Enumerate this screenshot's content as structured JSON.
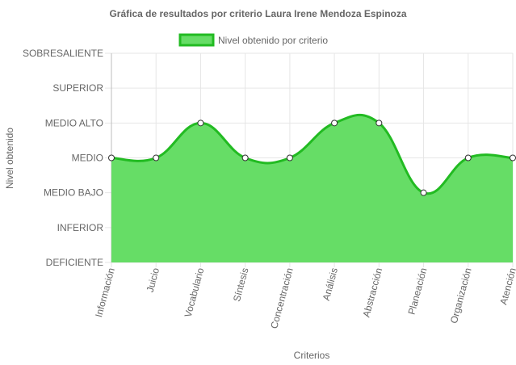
{
  "colors": {
    "fill": "#66dd66",
    "stroke": "#22bb22",
    "grid": "#e6e6e6",
    "text": "#666666",
    "point_fill": "#ffffff"
  },
  "chart_data": {
    "type": "area",
    "title": "Gráfica de resultados por criterio Laura Irene Mendoza Espinoza",
    "xlabel": "Criterios",
    "ylabel": "Nivel obtenido",
    "y_levels": [
      "DEFICIENTE",
      "INFERIOR",
      "MEDIO BAJO",
      "MEDIO",
      "MEDIO ALTO",
      "SUPERIOR",
      "SOBRESALIENTE"
    ],
    "ylim": [
      0,
      6
    ],
    "categories": [
      "Información",
      "Juicio",
      "Vocabulario",
      "Síntesis",
      "Concentración",
      "Análisis",
      "Abstracción",
      "Planeación",
      "Organización",
      "Atención"
    ],
    "series": [
      {
        "name": "Nivel obtenido por criterio",
        "values": [
          3,
          3,
          4,
          3,
          3,
          4,
          4,
          2,
          3,
          3
        ]
      }
    ],
    "grid": true,
    "legend_position": "top"
  }
}
